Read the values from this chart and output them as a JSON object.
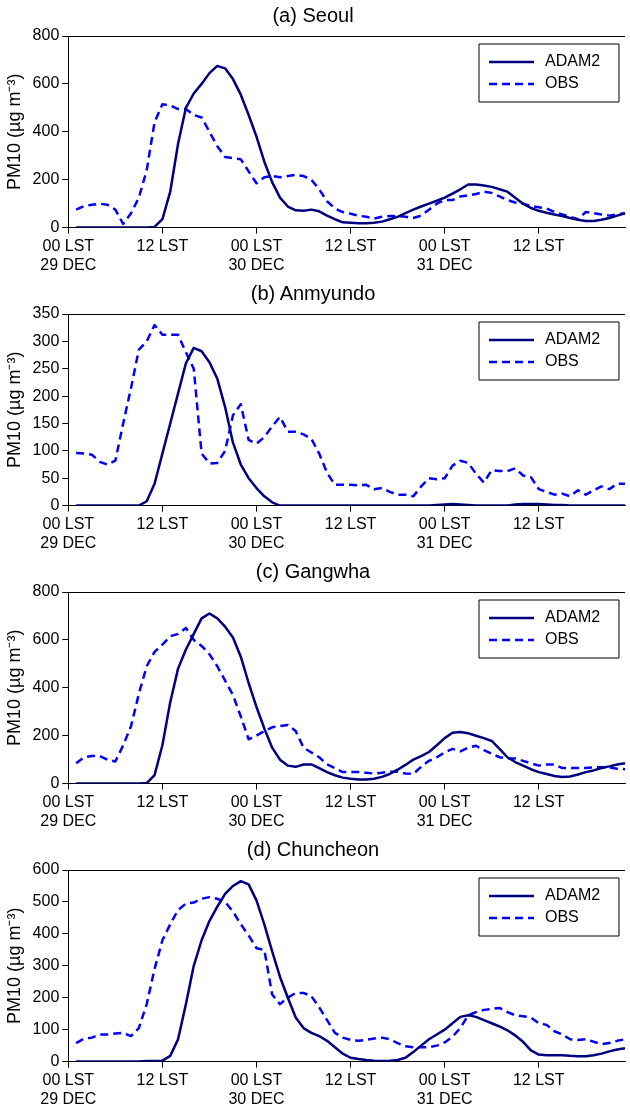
{
  "chart_data": [
    {
      "type": "line",
      "title": "(a) Seoul",
      "ylabel": "PM10 (µg m⁻³)",
      "grid": false,
      "legend": "top right",
      "marker": "none",
      "categories": [
        "00 LST\n29 DEC",
        null,
        null,
        null,
        null,
        null,
        null,
        null,
        null,
        null,
        null,
        null,
        "12 LST",
        null,
        null,
        null,
        null,
        null,
        null,
        null,
        null,
        null,
        null,
        null,
        "00 LST\n30 DEC",
        null,
        null,
        null,
        null,
        null,
        null,
        null,
        null,
        null,
        null,
        null,
        "12 LST",
        null,
        null,
        null,
        null,
        null,
        null,
        null,
        null,
        null,
        null,
        null,
        "00 LST\n31 DEC",
        null,
        null,
        null,
        null,
        null,
        null,
        null,
        null,
        null,
        null,
        null,
        "12 LST",
        null,
        null,
        null,
        null,
        null,
        null,
        null,
        null,
        null,
        null,
        null
      ],
      "ylim": [
        0,
        800
      ],
      "yticks": [
        0,
        200,
        400,
        600,
        800
      ],
      "series": [
        {
          "name": "ADAM2",
          "color": "#000080",
          "line_style": "solid",
          "values": [
            null,
            0,
            0,
            0,
            0,
            0,
            0,
            0,
            0,
            0,
            0,
            3,
            35,
            150,
            350,
            500,
            560,
            600,
            645,
            675,
            665,
            620,
            555,
            470,
            380,
            275,
            190,
            125,
            88,
            72,
            70,
            75,
            68,
            50,
            35,
            22,
            20,
            18,
            18,
            20,
            25,
            35,
            45,
            60,
            75,
            88,
            100,
            112,
            125,
            142,
            160,
            180,
            180,
            176,
            170,
            160,
            150,
            125,
            100,
            82,
            70,
            62,
            55,
            48,
            40,
            33,
            28,
            28,
            33,
            40,
            50,
            60
          ]
        },
        {
          "name": "OBS",
          "color": "#0000ff",
          "line_style": "dashed",
          "values": [
            null,
            75,
            90,
            95,
            100,
            95,
            75,
            15,
            60,
            125,
            240,
            440,
            515,
            510,
            495,
            495,
            470,
            460,
            400,
            340,
            295,
            290,
            285,
            235,
            185,
            210,
            215,
            210,
            215,
            220,
            215,
            200,
            160,
            110,
            80,
            65,
            58,
            50,
            45,
            38,
            45,
            48,
            48,
            45,
            40,
            50,
            75,
            100,
            115,
            115,
            130,
            135,
            140,
            150,
            145,
            130,
            115,
            105,
            100,
            90,
            85,
            80,
            65,
            55,
            45,
            35,
            65,
            60,
            55,
            50,
            55,
            60
          ]
        }
      ]
    },
    {
      "type": "line",
      "title": "(b) Anmyundo",
      "ylabel": "PM10 (µg m⁻³)",
      "grid": false,
      "legend": "top right",
      "marker": "none",
      "categories": [
        "00 LST\n29 DEC",
        null,
        null,
        null,
        null,
        null,
        null,
        null,
        null,
        null,
        null,
        null,
        "12 LST",
        null,
        null,
        null,
        null,
        null,
        null,
        null,
        null,
        null,
        null,
        null,
        "00 LST\n30 DEC",
        null,
        null,
        null,
        null,
        null,
        null,
        null,
        null,
        null,
        null,
        null,
        "12 LST",
        null,
        null,
        null,
        null,
        null,
        null,
        null,
        null,
        null,
        null,
        null,
        "00 LST\n31 DEC",
        null,
        null,
        null,
        null,
        null,
        null,
        null,
        null,
        null,
        null,
        null,
        "12 LST",
        null,
        null,
        null,
        null,
        null,
        null,
        null,
        null,
        null,
        null,
        null
      ],
      "ylim": [
        0,
        350
      ],
      "yticks": [
        0,
        50,
        100,
        150,
        200,
        250,
        300,
        350
      ],
      "series": [
        {
          "name": "ADAM2",
          "color": "#000080",
          "line_style": "solid",
          "values": [
            null,
            0,
            0,
            0,
            0,
            0,
            0,
            0,
            0,
            0,
            8,
            40,
            95,
            150,
            205,
            260,
            288,
            282,
            262,
            232,
            180,
            115,
            75,
            50,
            32,
            17,
            6,
            0,
            0,
            0,
            0,
            0,
            0,
            0,
            0,
            0,
            0,
            0,
            0,
            0,
            0,
            0,
            0,
            0,
            0,
            0,
            0,
            1,
            2,
            3,
            2,
            1,
            0,
            0,
            0,
            0,
            0,
            2,
            3,
            3,
            3,
            2,
            1,
            1,
            0,
            0,
            0,
            0,
            0,
            0,
            0,
            0
          ]
        },
        {
          "name": "OBS",
          "color": "#0000ff",
          "line_style": "dashed",
          "values": [
            null,
            96,
            95,
            93,
            80,
            75,
            82,
            150,
            215,
            285,
            300,
            330,
            312,
            312,
            312,
            280,
            250,
            95,
            77,
            78,
            100,
            165,
            185,
            120,
            113,
            125,
            145,
            162,
            135,
            135,
            130,
            122,
            95,
            60,
            38,
            38,
            38,
            37,
            38,
            30,
            32,
            25,
            20,
            20,
            17,
            35,
            50,
            48,
            50,
            73,
            82,
            78,
            58,
            42,
            65,
            63,
            63,
            68,
            55,
            52,
            30,
            25,
            20,
            22,
            17,
            28,
            20,
            28,
            35,
            30,
            40,
            40
          ]
        }
      ]
    },
    {
      "type": "line",
      "title": "(c) Gangwha",
      "ylabel": "PM10 (µg m⁻³)",
      "grid": false,
      "legend": "top right",
      "marker": "none",
      "categories": [
        "00 LST\n29 DEC",
        null,
        null,
        null,
        null,
        null,
        null,
        null,
        null,
        null,
        null,
        null,
        "12 LST",
        null,
        null,
        null,
        null,
        null,
        null,
        null,
        null,
        null,
        null,
        null,
        "00 LST\n30 DEC",
        null,
        null,
        null,
        null,
        null,
        null,
        null,
        null,
        null,
        null,
        null,
        "12 LST",
        null,
        null,
        null,
        null,
        null,
        null,
        null,
        null,
        null,
        null,
        null,
        "00 LST\n31 DEC",
        null,
        null,
        null,
        null,
        null,
        null,
        null,
        null,
        null,
        null,
        null,
        "12 LST",
        null,
        null,
        null,
        null,
        null,
        null,
        null,
        null,
        null,
        null,
        null
      ],
      "ylim": [
        0,
        800
      ],
      "yticks": [
        0,
        200,
        400,
        600,
        800
      ],
      "series": [
        {
          "name": "ADAM2",
          "color": "#000080",
          "line_style": "solid",
          "values": [
            null,
            0,
            0,
            0,
            0,
            0,
            0,
            0,
            0,
            0,
            2,
            35,
            160,
            340,
            480,
            560,
            625,
            690,
            710,
            690,
            655,
            610,
            530,
            420,
            320,
            230,
            150,
            100,
            75,
            70,
            80,
            80,
            65,
            48,
            35,
            25,
            20,
            17,
            17,
            20,
            28,
            40,
            58,
            78,
            100,
            115,
            132,
            160,
            190,
            212,
            215,
            210,
            200,
            190,
            178,
            145,
            110,
            90,
            75,
            60,
            48,
            40,
            32,
            28,
            30,
            38,
            48,
            55,
            65,
            72,
            80,
            85
          ]
        },
        {
          "name": "OBS",
          "color": "#0000ff",
          "line_style": "dashed",
          "values": [
            null,
            85,
            110,
            115,
            115,
            100,
            92,
            160,
            240,
            375,
            490,
            550,
            580,
            615,
            625,
            650,
            600,
            575,
            540,
            490,
            430,
            370,
            280,
            185,
            200,
            220,
            235,
            240,
            245,
            220,
            150,
            130,
            110,
            80,
            65,
            48,
            48,
            48,
            45,
            42,
            45,
            50,
            50,
            42,
            40,
            70,
            95,
            110,
            130,
            145,
            135,
            150,
            158,
            140,
            125,
            110,
            105,
            105,
            95,
            85,
            75,
            80,
            80,
            65,
            65,
            65,
            65,
            68,
            68,
            68,
            62,
            60
          ]
        }
      ]
    },
    {
      "type": "line",
      "title": "(d) Chuncheon",
      "ylabel": "PM10 (µg m⁻³)",
      "grid": false,
      "legend": "top right",
      "marker": "none",
      "categories": [
        "00 LST\n29 DEC",
        null,
        null,
        null,
        null,
        null,
        null,
        null,
        null,
        null,
        null,
        null,
        "12 LST",
        null,
        null,
        null,
        null,
        null,
        null,
        null,
        null,
        null,
        null,
        null,
        "00 LST\n30 DEC",
        null,
        null,
        null,
        null,
        null,
        null,
        null,
        null,
        null,
        null,
        null,
        "12 LST",
        null,
        null,
        null,
        null,
        null,
        null,
        null,
        null,
        null,
        null,
        null,
        "00 LST\n31 DEC",
        null,
        null,
        null,
        null,
        null,
        null,
        null,
        null,
        null,
        null,
        null,
        "12 LST",
        null,
        null,
        null,
        null,
        null,
        null,
        null,
        null,
        null,
        null,
        null
      ],
      "ylim": [
        0,
        600
      ],
      "yticks": [
        0,
        100,
        200,
        300,
        400,
        500,
        600
      ],
      "series": [
        {
          "name": "ADAM2",
          "color": "#000080",
          "line_style": "solid",
          "values": [
            null,
            0,
            0,
            0,
            0,
            0,
            0,
            0,
            0,
            0,
            2,
            2,
            3,
            18,
            70,
            180,
            300,
            380,
            440,
            485,
            525,
            550,
            565,
            555,
            505,
            430,
            345,
            265,
            200,
            138,
            105,
            90,
            80,
            65,
            45,
            25,
            12,
            8,
            5,
            3,
            2,
            3,
            5,
            12,
            30,
            50,
            70,
            85,
            100,
            120,
            140,
            145,
            140,
            130,
            120,
            110,
            98,
            82,
            62,
            35,
            22,
            20,
            20,
            20,
            18,
            17,
            17,
            20,
            25,
            32,
            38,
            42
          ]
        },
        {
          "name": "OBS",
          "color": "#0000ff",
          "line_style": "dashed",
          "values": [
            null,
            58,
            72,
            75,
            85,
            85,
            88,
            90,
            80,
            105,
            180,
            290,
            380,
            430,
            475,
            495,
            498,
            510,
            515,
            510,
            500,
            470,
            430,
            395,
            355,
            350,
            210,
            180,
            200,
            215,
            215,
            205,
            170,
            130,
            90,
            75,
            68,
            65,
            68,
            72,
            75,
            70,
            58,
            48,
            45,
            45,
            45,
            50,
            60,
            78,
            105,
            145,
            155,
            162,
            165,
            168,
            155,
            145,
            142,
            138,
            120,
            115,
            95,
            85,
            70,
            68,
            70,
            62,
            55,
            58,
            65,
            70
          ]
        }
      ]
    }
  ]
}
